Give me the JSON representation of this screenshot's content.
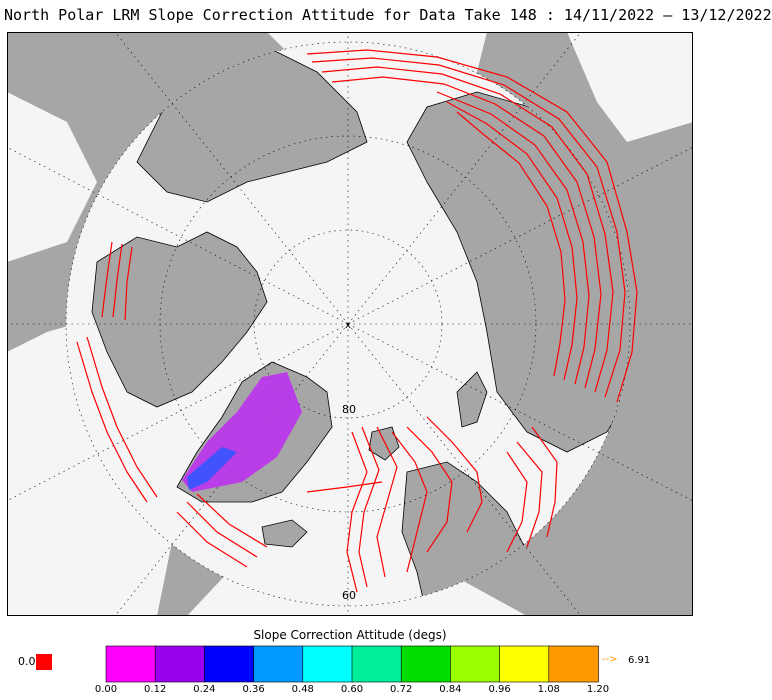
{
  "title": "North Polar LRM Slope Correction Attitude for Data Take 148 : 14/11/2022 – 13/12/2022",
  "map": {
    "ocean_color": "#f5f5f5",
    "land_color": "#a6a6a6",
    "coast_color": "#000000",
    "grid_color": "#000000",
    "latitude_labels": [
      "80",
      "60"
    ],
    "pole_marker": "x",
    "track_color": "#ff0000"
  },
  "colorbar": {
    "title": "Slope Correction Attitude (degs)",
    "ticks": [
      "0.00",
      "0.12",
      "0.24",
      "0.36",
      "0.48",
      "0.60",
      "0.72",
      "0.84",
      "0.96",
      "1.08",
      "1.20"
    ],
    "colors": [
      "#ff00ff",
      "#9900ee",
      "#0000ff",
      "#0099ff",
      "#00ffff",
      "#00ee99",
      "#00dd00",
      "#99ff00",
      "#ffff00",
      "#ff9900"
    ],
    "zero_label": "0.0",
    "zero_color": "#ff0000",
    "over_arrow": "--> ",
    "over_value": "6.91",
    "over_color": "#ff9900"
  }
}
